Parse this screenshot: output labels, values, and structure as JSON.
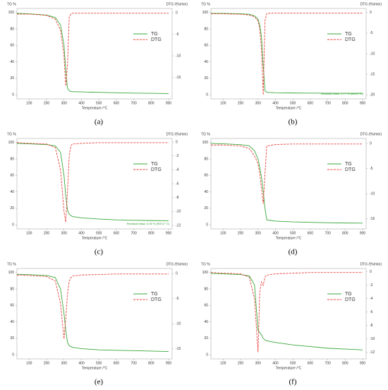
{
  "chart_data": [
    {
      "type": "line",
      "panel_label": "(a)",
      "y_label": "TG %",
      "y2_label": "DTG /(%/min)",
      "x_label": "Temperature /°C",
      "x": [
        30,
        100,
        200,
        250,
        280,
        300,
        310,
        320,
        330,
        340,
        350,
        400,
        500,
        600,
        700,
        800,
        900
      ],
      "xlim": [
        30,
        920
      ],
      "xticks": [
        100,
        200,
        300,
        400,
        500,
        600,
        700,
        800,
        900
      ],
      "ylim": [
        -5,
        105
      ],
      "yticks": [
        0,
        20,
        40,
        60,
        80,
        100
      ],
      "y2lim": [
        -20,
        1
      ],
      "y2ticks": [
        0,
        -5,
        -10,
        -15
      ],
      "series": [
        {
          "name": "TG",
          "color": "#3aa83a",
          "values": [
            99,
            98.5,
            97,
            94,
            85,
            60,
            30,
            8,
            5,
            4,
            3.8,
            3.5,
            3,
            2.5,
            2,
            1.8,
            1.5
          ]
        },
        {
          "name": "DTG",
          "color": "#e8403a",
          "axis": "y2",
          "values": [
            -0.3,
            -0.3,
            -0.6,
            -1.5,
            -4,
            -10,
            -17,
            -12,
            -1,
            -0.2,
            -0.1,
            -0.1,
            -0.1,
            -0.1,
            -0.1,
            -0.1,
            -0.1
          ]
        }
      ]
    },
    {
      "type": "line",
      "panel_label": "(b)",
      "y_label": "TG %",
      "y2_label": "DTG /(%/min)",
      "x_label": "Temperature /°C",
      "x": [
        30,
        100,
        200,
        250,
        280,
        300,
        310,
        320,
        330,
        340,
        350,
        400,
        500,
        600,
        700,
        800,
        900
      ],
      "xlim": [
        30,
        920
      ],
      "xticks": [
        100,
        200,
        300,
        400,
        500,
        600,
        700,
        800,
        900
      ],
      "ylim": [
        -5,
        105
      ],
      "yticks": [
        0,
        20,
        40,
        60,
        80,
        100
      ],
      "y2lim": [
        -21,
        1
      ],
      "y2ticks": [
        0,
        -5,
        -10,
        -15,
        -20
      ],
      "annotation": "Residual Mass: 1.77 % (900.0 °C)",
      "series": [
        {
          "name": "TG",
          "color": "#3aa83a",
          "values": [
            99,
            99,
            98.5,
            98,
            96,
            92,
            85,
            70,
            35,
            5,
            3,
            2.5,
            2.2,
            2,
            1.9,
            1.8,
            1.77
          ]
        },
        {
          "name": "DTG",
          "color": "#e8403a",
          "axis": "y2",
          "values": [
            -0.3,
            -0.3,
            -0.4,
            -0.6,
            -1,
            -2,
            -4,
            -9,
            -20,
            -2,
            -0.2,
            -0.1,
            -0.1,
            -0.1,
            -0.1,
            -0.1,
            -0.1
          ]
        }
      ]
    },
    {
      "type": "line",
      "panel_label": "(c)",
      "y_label": "TG %",
      "y2_label": "DTG /(%/min)",
      "x_label": "Temperature /°C",
      "x": [
        30,
        100,
        200,
        250,
        280,
        300,
        310,
        320,
        330,
        340,
        350,
        400,
        500,
        600,
        700,
        800,
        900
      ],
      "xlim": [
        30,
        920
      ],
      "xticks": [
        100,
        200,
        300,
        400,
        500,
        600,
        700,
        800,
        900
      ],
      "ylim": [
        -5,
        105
      ],
      "yticks": [
        0,
        20,
        40,
        60,
        80,
        100
      ],
      "y2lim": [
        -12.5,
        0.5
      ],
      "y2ticks": [
        0,
        -2,
        -4,
        -6,
        -8,
        -10,
        -12
      ],
      "annotation": "Residual Mass: 4.92 % (900.0 °C)",
      "series": [
        {
          "name": "TG",
          "color": "#3aa83a",
          "values": [
            99,
            98.5,
            97.5,
            96,
            88,
            60,
            35,
            18,
            13,
            11,
            10,
            8.5,
            7,
            6,
            5.5,
            5.2,
            4.92
          ]
        },
        {
          "name": "DTG",
          "color": "#e8403a",
          "axis": "y2",
          "values": [
            -0.1,
            -0.2,
            -0.3,
            -0.8,
            -4,
            -10,
            -11.5,
            -7,
            -2,
            -0.5,
            -0.3,
            -0.2,
            -0.1,
            -0.1,
            -0.1,
            -0.1,
            -0.1
          ]
        }
      ]
    },
    {
      "type": "line",
      "panel_label": "(d)",
      "y_label": "TG %",
      "y2_label": "DTG /(%/min)",
      "x_label": "Temperature /°C",
      "x": [
        30,
        100,
        200,
        250,
        280,
        300,
        310,
        320,
        330,
        340,
        350,
        400,
        500,
        600,
        700,
        800,
        900
      ],
      "xlim": [
        30,
        920
      ],
      "xticks": [
        100,
        200,
        300,
        400,
        500,
        600,
        700,
        800,
        900
      ],
      "ylim": [
        -5,
        105
      ],
      "yticks": [
        0,
        20,
        40,
        60,
        80,
        100
      ],
      "y2lim": [
        -17,
        1
      ],
      "y2ticks": [
        0,
        -5,
        -10,
        -15
      ],
      "series": [
        {
          "name": "TG",
          "color": "#3aa83a",
          "values": [
            99,
            98.5,
            97.5,
            96,
            90,
            80,
            70,
            58,
            40,
            20,
            6,
            4.5,
            3.5,
            3,
            2.5,
            2.2,
            2
          ]
        },
        {
          "name": "DTG",
          "color": "#e8403a",
          "axis": "y2",
          "values": [
            -0.3,
            -0.3,
            -0.5,
            -1,
            -2.5,
            -4,
            -6,
            -9,
            -12,
            -6,
            -0.5,
            -0.2,
            -0.1,
            -0.1,
            -0.1,
            -0.1,
            -0.1
          ]
        }
      ]
    },
    {
      "type": "line",
      "panel_label": "(e)",
      "y_label": "TG %",
      "y2_label": "DTG /(%/min)",
      "x_label": "Temperature /°C",
      "x": [
        30,
        100,
        200,
        250,
        280,
        300,
        310,
        320,
        330,
        340,
        350,
        400,
        500,
        600,
        700,
        800,
        900
      ],
      "xlim": [
        30,
        920
      ],
      "xticks": [
        100,
        200,
        300,
        400,
        500,
        600,
        700,
        800,
        900
      ],
      "ylim": [
        -5,
        105
      ],
      "yticks": [
        0,
        20,
        40,
        60,
        80,
        100
      ],
      "y2lim": [
        -17,
        1
      ],
      "y2ticks": [
        0,
        -5,
        -10,
        -15
      ],
      "series": [
        {
          "name": "TG",
          "color": "#3aa83a",
          "values": [
            98,
            97.5,
            96.5,
            94,
            80,
            50,
            30,
            15,
            11,
            10,
            9,
            7.5,
            6,
            5.5,
            5,
            4.5,
            4
          ]
        },
        {
          "name": "DTG",
          "color": "#e8403a",
          "axis": "y2",
          "values": [
            -0.3,
            -0.4,
            -0.6,
            -1.5,
            -6,
            -13,
            -9,
            -4,
            -1.5,
            -0.8,
            -0.5,
            -0.3,
            -0.2,
            -0.1,
            -0.1,
            -0.1,
            -0.1
          ]
        }
      ]
    },
    {
      "type": "line",
      "panel_label": "(f)",
      "y_label": "TG %",
      "y2_label": "DTG /(%/min)",
      "x_label": "Temperature /°C",
      "x": [
        30,
        100,
        200,
        250,
        280,
        300,
        310,
        320,
        330,
        340,
        350,
        400,
        500,
        600,
        700,
        800,
        900
      ],
      "xlim": [
        30,
        920
      ],
      "xticks": [
        100,
        200,
        300,
        400,
        500,
        600,
        700,
        800,
        900
      ],
      "ylim": [
        -5,
        105
      ],
      "yticks": [
        0,
        20,
        40,
        60,
        80,
        100
      ],
      "y2lim": [
        -13,
        0.5
      ],
      "y2ticks": [
        0,
        -2,
        -4,
        -6,
        -8,
        -10,
        -12
      ],
      "series": [
        {
          "name": "TG",
          "color": "#3aa83a",
          "values": [
            99,
            98.5,
            97.5,
            96,
            85,
            30,
            27,
            24,
            20,
            18,
            17,
            15,
            12,
            10,
            8,
            7,
            6
          ]
        },
        {
          "name": "DTG",
          "color": "#e8403a",
          "axis": "y2",
          "values": [
            -0.1,
            -0.2,
            -0.3,
            -0.8,
            -4,
            -12,
            -3,
            -1.5,
            -2,
            -0.8,
            -0.5,
            -0.3,
            -0.2,
            -0.1,
            -0.1,
            -0.1,
            -0.1
          ]
        }
      ]
    }
  ]
}
